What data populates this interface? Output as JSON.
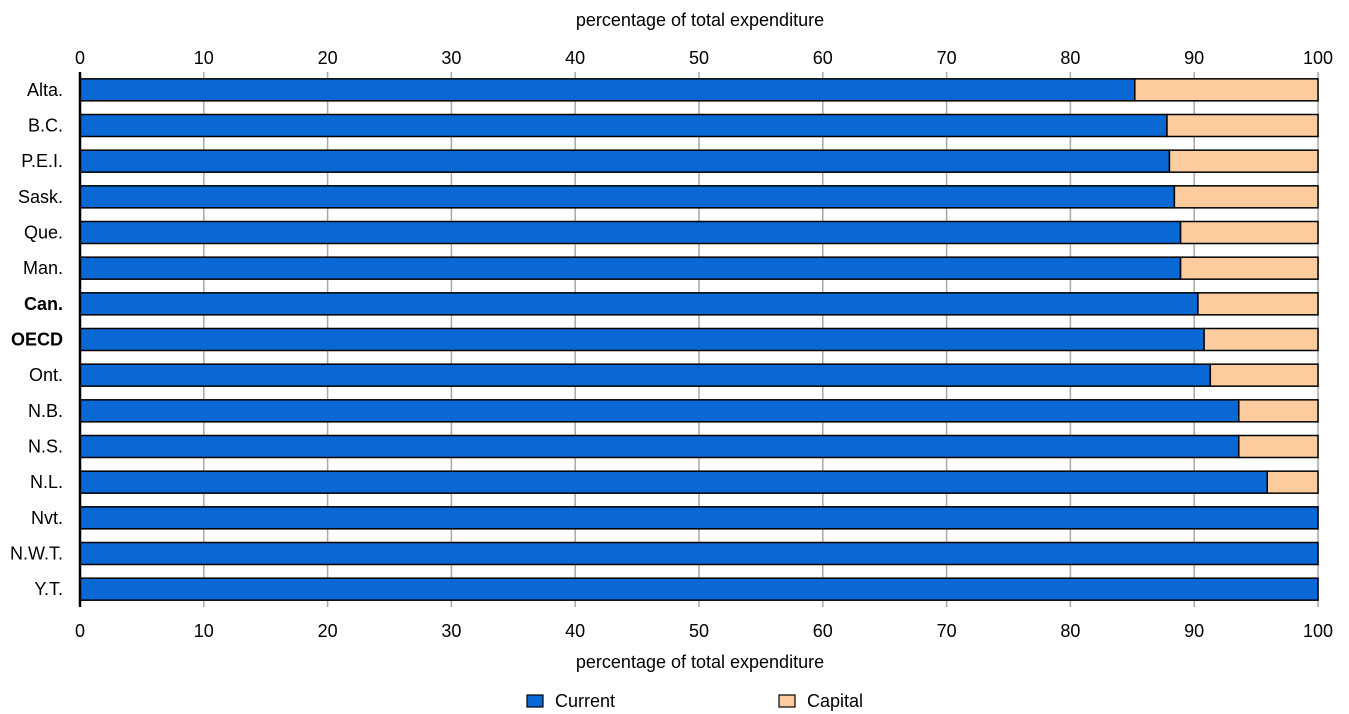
{
  "chart_data": {
    "type": "bar",
    "stacked": true,
    "orientation": "horizontal",
    "xlabel_top": "percentage of total expenditure",
    "xlabel_bottom": "percentage of total expenditure",
    "xlim": [
      0,
      100
    ],
    "xticks": [
      "0",
      "10",
      "20",
      "30",
      "40",
      "50",
      "60",
      "70",
      "80",
      "90",
      "100"
    ],
    "grid": true,
    "legend_position": "bottom",
    "categories": [
      "Alta.",
      "B.C.",
      "P.E.I.",
      "Sask.",
      "Que.",
      "Man.",
      "Can.",
      "OECD",
      "Ont.",
      "N.B.",
      "N.S.",
      "N.L.",
      "Nvt.",
      "N.W.T.",
      "Y.T."
    ],
    "highlight_categories": [
      "Can.",
      "OECD"
    ],
    "highlight_color": "#a4420f",
    "series": [
      {
        "name": "Current",
        "color": "#0a68d4",
        "values": [
          85.2,
          87.8,
          88.0,
          88.4,
          88.9,
          88.9,
          90.3,
          90.8,
          91.3,
          93.6,
          93.6,
          95.9,
          100,
          100,
          100
        ]
      },
      {
        "name": "Capital",
        "color": "#fdcc9e",
        "values": [
          14.8,
          12.2,
          12.0,
          11.6,
          11.1,
          11.1,
          9.7,
          9.2,
          8.7,
          6.4,
          6.4,
          4.1,
          0,
          0,
          0
        ]
      }
    ]
  }
}
